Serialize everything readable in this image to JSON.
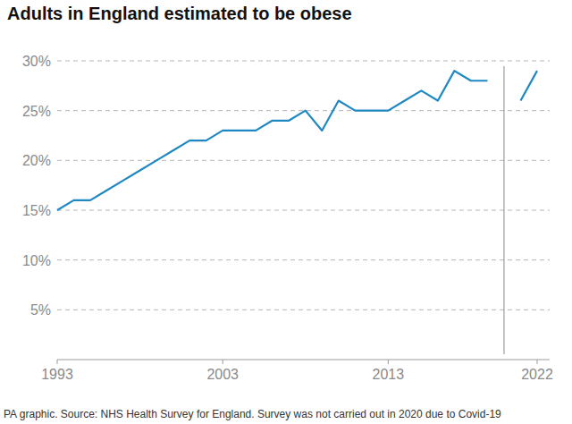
{
  "chart_data": {
    "type": "line",
    "title": "Adults in England estimated to be obese",
    "caption": "PA graphic. Source: NHS Health Survey for England. Survey was not carried out in 2020 due to Covid-19",
    "x": [
      1993,
      1994,
      1995,
      1996,
      1997,
      1998,
      1999,
      2000,
      2001,
      2002,
      2003,
      2004,
      2005,
      2006,
      2007,
      2008,
      2009,
      2010,
      2011,
      2012,
      2013,
      2014,
      2015,
      2016,
      2017,
      2018,
      2019,
      2020,
      2021,
      2022
    ],
    "values": [
      15,
      16,
      16,
      17,
      18,
      19,
      20,
      21,
      22,
      22,
      23,
      23,
      23,
      24,
      24,
      25,
      23,
      26,
      25,
      25,
      25,
      26,
      27,
      26,
      29,
      28,
      28,
      null,
      26,
      29
    ],
    "color": "#1f88c2",
    "xlim": [
      1993,
      2022
    ],
    "xticks": [
      1993,
      2003,
      2013,
      2022
    ],
    "ylim": [
      0,
      30
    ],
    "yticks": [
      {
        "value": 5,
        "label": "5%"
      },
      {
        "value": 10,
        "label": "10%"
      },
      {
        "value": 15,
        "label": "15%"
      },
      {
        "value": 20,
        "label": "20%"
      },
      {
        "value": 25,
        "label": "25%"
      },
      {
        "value": 30,
        "label": "30%"
      }
    ],
    "grid": true
  }
}
